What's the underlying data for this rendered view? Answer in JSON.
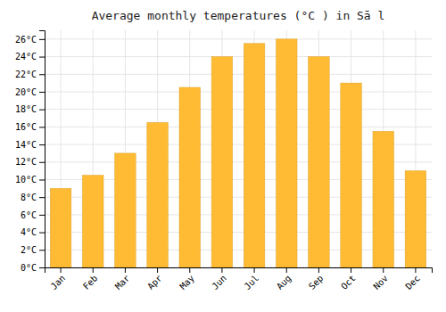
{
  "chart_data": {
    "type": "bar",
    "title": "Average monthly temperatures (°C ) in Sā l",
    "categories": [
      "Jan",
      "Feb",
      "Mar",
      "Apr",
      "May",
      "Jun",
      "Jul",
      "Aug",
      "Sep",
      "Oct",
      "Nov",
      "Dec"
    ],
    "values": [
      9.0,
      10.5,
      13.0,
      16.5,
      20.5,
      24.0,
      25.5,
      26.0,
      24.0,
      21.0,
      15.5,
      11.0
    ],
    "color": "#FFBB33",
    "ylim": [
      0,
      27
    ],
    "yticks": [
      {
        "value": 0,
        "label": "0°C"
      },
      {
        "value": 2,
        "label": "2°C"
      },
      {
        "value": 4,
        "label": "4°C"
      },
      {
        "value": 6,
        "label": "6°C"
      },
      {
        "value": 8,
        "label": "8°C"
      },
      {
        "value": 10,
        "label": "10°C"
      },
      {
        "value": 12,
        "label": "12°C"
      },
      {
        "value": 14,
        "label": "14°C"
      },
      {
        "value": 16,
        "label": "16°C"
      },
      {
        "value": 18,
        "label": "18°C"
      },
      {
        "value": 20,
        "label": "20°C"
      },
      {
        "value": 22,
        "label": "22°C"
      },
      {
        "value": 24,
        "label": "24°C"
      },
      {
        "value": 26,
        "label": "26°C"
      }
    ],
    "grid": true
  }
}
